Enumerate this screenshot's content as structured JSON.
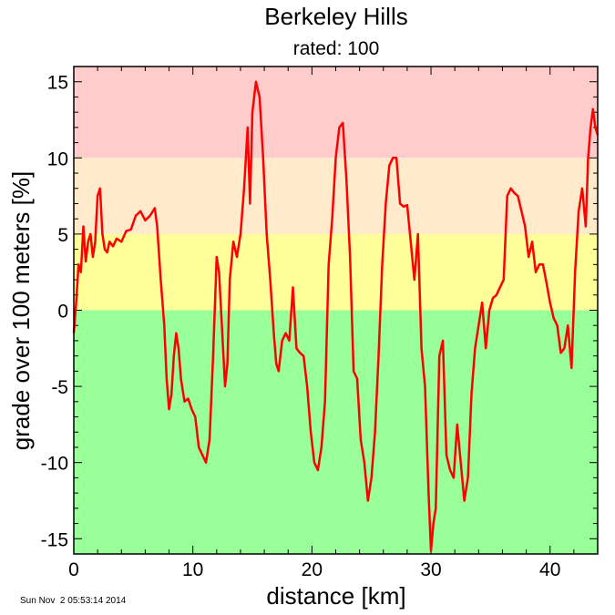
{
  "colors": {
    "red_band": "#ffcccc",
    "orange_band": "#ffeacc",
    "yellow_band": "#ffff99",
    "green_band": "#99ff99",
    "line": "#ff0000",
    "axis": "#000000"
  },
  "timestamp": "Sun Nov  2 05:53:14 2014",
  "chart_data": {
    "type": "line",
    "title": "Berkeley Hills",
    "subtitle": "rated: 100",
    "xlabel": "distance [km]",
    "ylabel": "grade over 100 meters [%]",
    "xlim": [
      0,
      44
    ],
    "ylim": [
      -16,
      16
    ],
    "xticks": [
      0,
      10,
      20,
      30,
      40
    ],
    "xtick_labels": [
      "0",
      "10",
      "20",
      "30",
      "40"
    ],
    "yticks": [
      15,
      10,
      5,
      0,
      -5,
      -10,
      -15
    ],
    "ytick_labels": [
      "15",
      "10",
      "5",
      "0",
      "-5",
      "-10",
      "-15"
    ],
    "grid": false,
    "bands": [
      {
        "from": 10,
        "to": 16,
        "color": "#ffcccc"
      },
      {
        "from": 5,
        "to": 10,
        "color": "#ffeacc"
      },
      {
        "from": 0,
        "to": 5,
        "color": "#ffff99"
      },
      {
        "from": -16,
        "to": 0,
        "color": "#99ff99"
      }
    ],
    "series": [
      {
        "color": "#ff0000",
        "x": [
          0,
          0.2,
          0.4,
          0.6,
          0.8,
          1.0,
          1.2,
          1.4,
          1.6,
          1.8,
          2.0,
          2.2,
          2.4,
          2.6,
          2.8,
          3.0,
          3.3,
          3.6,
          4.0,
          4.4,
          4.8,
          5.2,
          5.6,
          6.0,
          6.4,
          6.8,
          7.0,
          7.3,
          7.6,
          7.8,
          8.0,
          8.2,
          8.4,
          8.6,
          8.8,
          9.0,
          9.3,
          9.6,
          9.9,
          10.2,
          10.5,
          10.8,
          11.1,
          11.4,
          11.7,
          12.0,
          12.2,
          12.5,
          12.7,
          12.9,
          13.1,
          13.4,
          13.7,
          14.0,
          14.3,
          14.6,
          14.8,
          15.0,
          15.3,
          15.6,
          15.9,
          16.2,
          16.5,
          16.8,
          17.0,
          17.2,
          17.5,
          17.8,
          18.1,
          18.4,
          18.7,
          19.0,
          19.3,
          19.6,
          19.9,
          20.2,
          20.5,
          20.8,
          21.1,
          21.4,
          21.7,
          22.0,
          22.3,
          22.6,
          22.9,
          23.2,
          23.5,
          23.8,
          24.1,
          24.4,
          24.7,
          25.0,
          25.3,
          25.6,
          25.9,
          26.2,
          26.5,
          26.8,
          27.1,
          27.4,
          27.7,
          28.0,
          28.3,
          28.6,
          28.9,
          29.2,
          29.5,
          29.8,
          30.0,
          30.2,
          30.4,
          30.7,
          31.0,
          31.3,
          31.6,
          31.9,
          32.2,
          32.5,
          32.8,
          33.1,
          33.4,
          33.7,
          34.0,
          34.3,
          34.6,
          34.9,
          35.2,
          35.5,
          35.8,
          36.1,
          36.4,
          36.7,
          37.0,
          37.3,
          37.6,
          37.9,
          38.2,
          38.5,
          38.8,
          39.1,
          39.4,
          39.7,
          40.0,
          40.3,
          40.6,
          40.9,
          41.2,
          41.5,
          41.8,
          42.1,
          42.4,
          42.7,
          43.0,
          43.2,
          43.4,
          43.6,
          43.8,
          44.0
        ],
        "y": [
          -1.5,
          0.5,
          3.0,
          2.5,
          5.5,
          3.2,
          4.5,
          5.0,
          3.5,
          4.5,
          7.5,
          8.0,
          5.0,
          4.0,
          3.8,
          4.5,
          4.2,
          4.7,
          4.5,
          5.2,
          5.3,
          6.2,
          6.5,
          5.9,
          6.2,
          6.7,
          5.5,
          2.0,
          -1.0,
          -4.5,
          -6.5,
          -5.5,
          -3.0,
          -1.5,
          -2.5,
          -4.5,
          -6.0,
          -5.8,
          -6.5,
          -7.0,
          -9.0,
          -9.5,
          -10.0,
          -8.5,
          -3.0,
          3.5,
          2.5,
          -2.0,
          -5.0,
          -3.5,
          2.0,
          4.5,
          3.5,
          5.0,
          8.0,
          12.0,
          7.0,
          13.0,
          15.0,
          14.0,
          10.0,
          5.0,
          2.0,
          -1.5,
          -3.5,
          -4.0,
          -2.0,
          -1.5,
          -2.0,
          1.5,
          -2.5,
          -2.8,
          -3.0,
          -5.0,
          -8.0,
          -10.0,
          -10.5,
          -9.0,
          -6.0,
          3.0,
          6.0,
          10.0,
          12.0,
          12.3,
          8.5,
          3.5,
          -4.0,
          -4.5,
          -8.5,
          -10.0,
          -12.5,
          -11.0,
          -8.0,
          -3.0,
          3.0,
          7.0,
          9.5,
          10.0,
          10.0,
          7.0,
          6.8,
          6.9,
          4.5,
          2.0,
          5.0,
          -2.5,
          -5.0,
          -12.0,
          -15.8,
          -14.0,
          -13.0,
          -3.0,
          -2.0,
          -9.5,
          -10.5,
          -11.0,
          -7.5,
          -10.0,
          -12.5,
          -11.0,
          -5.5,
          -2.5,
          -1.0,
          0.5,
          -2.5,
          0.0,
          0.8,
          1.0,
          1.5,
          2.0,
          7.5,
          8.0,
          7.7,
          7.5,
          6.5,
          5.5,
          3.5,
          4.5,
          2.5,
          3.0,
          3.0,
          1.8,
          0.5,
          -0.5,
          -1.0,
          -2.8,
          -2.5,
          -1.0,
          -3.8,
          2.5,
          6.5,
          8.0,
          5.5,
          10.0,
          12.0,
          13.2,
          12.0,
          11.5
        ]
      }
    ]
  }
}
